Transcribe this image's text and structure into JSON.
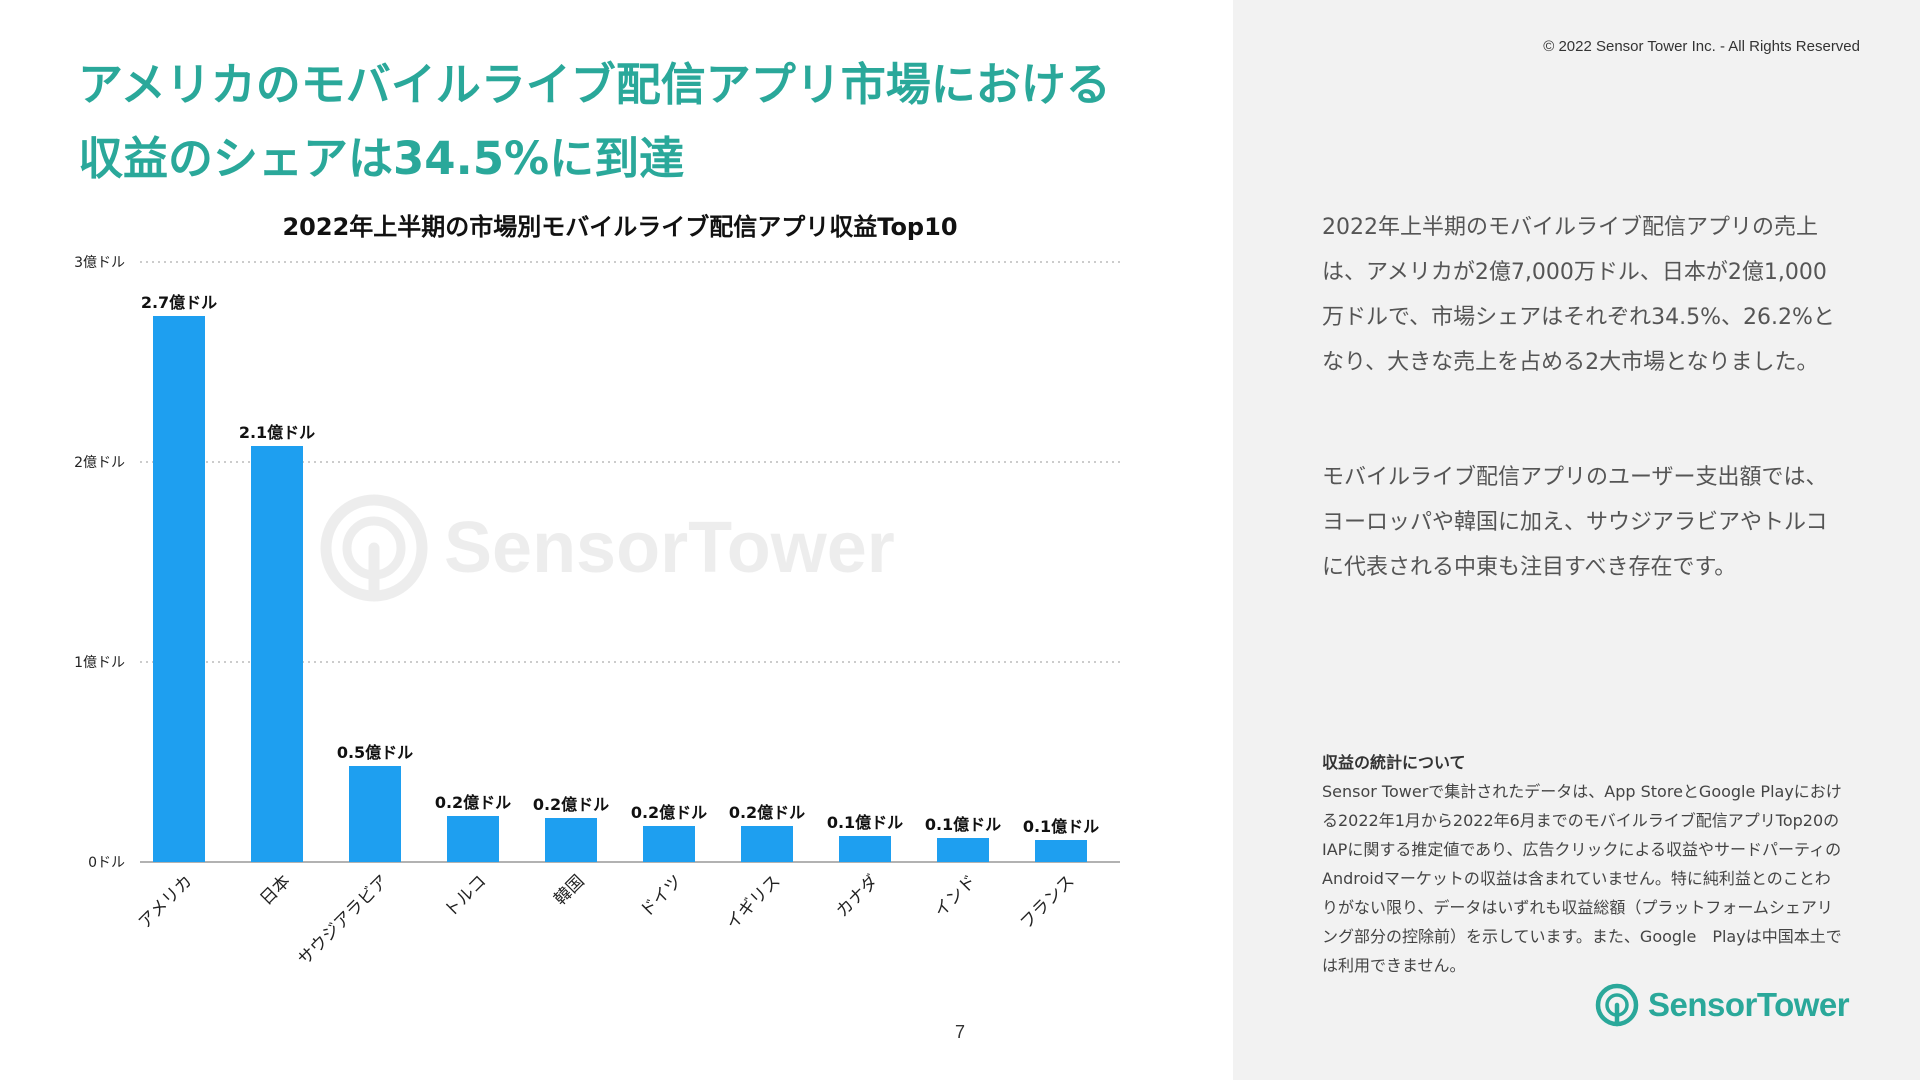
{
  "slide": {
    "title_line1": "アメリカのモバイルライブ配信アプリ市場における",
    "title_line2": "収益のシェアは34.5%に到達",
    "copyright": "© 2022 Sensor Tower Inc. - All Rights Reserved",
    "page_number": "7"
  },
  "chart_data": {
    "type": "bar",
    "title": "2022年上半期の市場別モバイルライブ配信アプリ収益Top10",
    "xlabel": "",
    "ylabel": "",
    "unit": "億ドル",
    "ylim": [
      0,
      3
    ],
    "yticks": [
      0,
      1,
      2,
      3
    ],
    "ytick_labels": [
      "0ドル",
      "1億ドル",
      "2億ドル",
      "3億ドル"
    ],
    "grid": true,
    "categories": [
      "アメリカ",
      "日本",
      "サウジアラビア",
      "トルコ",
      "韓国",
      "ドイツ",
      "イギリス",
      "カナダ",
      "インド",
      "フランス"
    ],
    "values": [
      2.73,
      2.08,
      0.48,
      0.23,
      0.22,
      0.18,
      0.18,
      0.13,
      0.12,
      0.11
    ],
    "data_labels": [
      "2.7億ドル",
      "2.1億ドル",
      "0.5億ドル",
      "0.2億ドル",
      "0.2億ドル",
      "0.2億ドル",
      "0.2億ドル",
      "0.1億ドル",
      "0.1億ドル",
      "0.1億ドル"
    ],
    "bar_color": "#1e9ff0",
    "watermark": "SensorTower"
  },
  "sidebar": {
    "paragraph1": "2022年上半期のモバイルライブ配信アプリの売上は、アメリカが2億7,000万ドル、日本が2億1,000万ドルで、市場シェアはそれぞれ34.5%、26.2%となり、大きな売上を占める2大市場となりました。",
    "paragraph2": "モバイルライブ配信アプリのユーザー支出額では、ヨーロッパや韓国に加え、サウジアラビアやトルコに代表される中東も注目すべき存在です。",
    "note_heading": "収益の統計について",
    "note_body": "Sensor Towerで集計されたデータは、App StoreとGoogle Playにおける2022年1月から2022年6月までのモバイルライブ配信アプリTop20のIAPに関する推定値であり、広告クリックによる収益やサードパーティのAndroidマーケットの収益は含まれていません。特に純利益とのことわりがない限り、データはいずれも収益総額（プラットフォームシェアリング部分の控除前）を示しています。また、Google　Playは中国本土では利用できません。"
  },
  "logo": {
    "text": "SensorTower",
    "icon": "sensor-tower-logo-icon"
  },
  "colors": {
    "accent": "#2aa89a",
    "bar": "#1e9ff0",
    "panel_bg": "#f2f2f2"
  }
}
